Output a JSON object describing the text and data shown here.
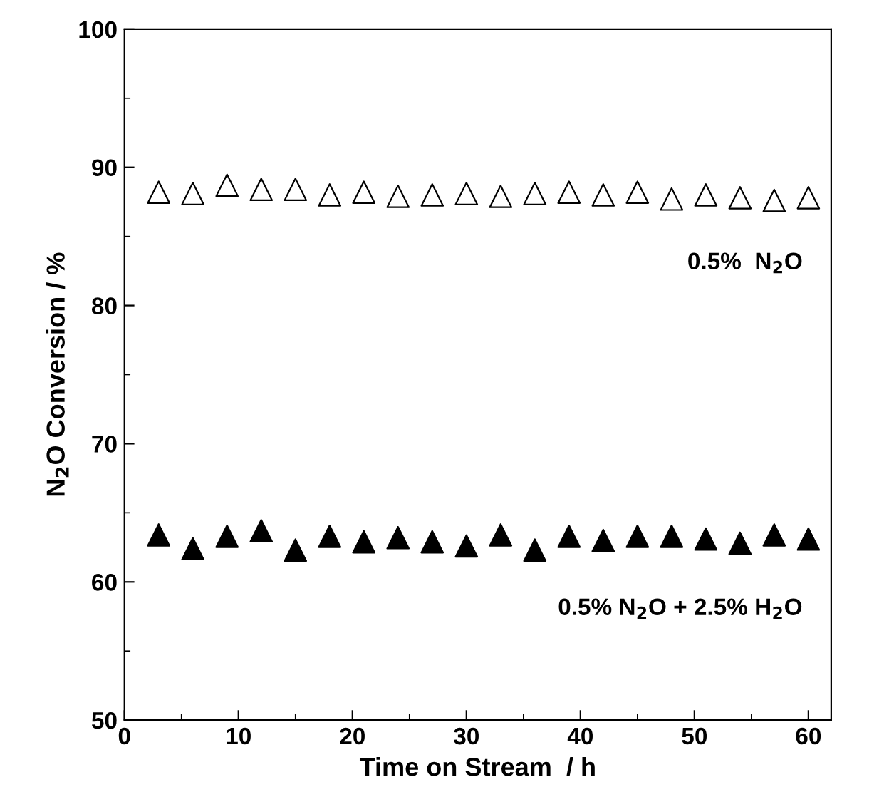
{
  "chart_data": {
    "type": "scatter",
    "xlabel": "Time on Stream  / h",
    "ylabel": "N$_{2}$O Conversion / %",
    "x": [
      3,
      6,
      9,
      12,
      15,
      18,
      21,
      24,
      27,
      30,
      33,
      36,
      39,
      42,
      45,
      48,
      51,
      54,
      57,
      60
    ],
    "series": [
      {
        "name": "0.5%  N$_{2}$O",
        "color": "#000000",
        "marker": "triangle",
        "values": [
          88.2,
          88.1,
          88.7,
          88.4,
          88.4,
          88.0,
          88.2,
          87.9,
          88.0,
          88.1,
          87.9,
          88.1,
          88.2,
          88.0,
          88.2,
          87.7,
          88.0,
          87.8,
          87.6,
          87.8
        ]
      },
      {
        "name": "0.5% N$_{2}$O + 2.5% H$_{2}$O",
        "color": "#000000",
        "marker": "triangle",
        "values": [
          63.4,
          62.4,
          63.3,
          63.7,
          62.3,
          63.3,
          62.9,
          63.2,
          62.9,
          62.6,
          63.4,
          62.3,
          63.3,
          63.0,
          63.3,
          63.3,
          63.1,
          62.8,
          63.4,
          63.1
        ]
      }
    ],
    "xlim": [
      0,
      62
    ],
    "xticks": [
      0,
      10,
      20,
      30,
      40,
      50,
      60
    ],
    "ylim": [
      50,
      100
    ],
    "yticks": [
      50,
      60,
      70,
      80,
      90,
      100
    ],
    "grid": false,
    "legend": false
  }
}
